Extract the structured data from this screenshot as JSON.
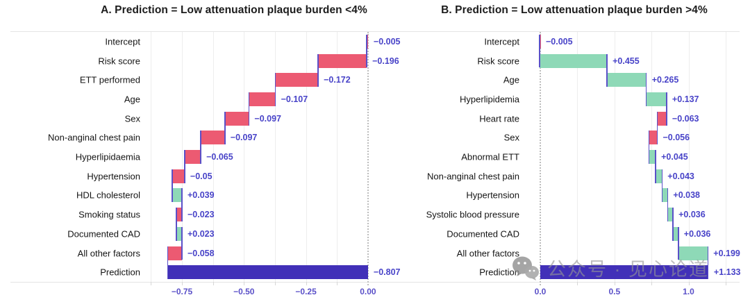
{
  "watermark": {
    "icon": "wechat-icon",
    "text": "公众号 · 见心论道"
  },
  "chart_data": [
    {
      "type": "bar",
      "subtype": "waterfall",
      "title": "A. Prediction = Low attenuation plaque burden <4%",
      "orientation": "horizontal",
      "categories": [
        "Intercept",
        "Risk score",
        "ETT performed",
        "Age",
        "Sex",
        "Non-anginal chest pain",
        "Hyperlipidaemia",
        "Hypertension",
        "HDL cholesterol",
        "Smoking status",
        "Documented CAD",
        "All other factors",
        "Prediction"
      ],
      "values": [
        -0.005,
        -0.196,
        -0.172,
        -0.107,
        -0.097,
        -0.097,
        -0.065,
        -0.05,
        0.039,
        -0.023,
        0.023,
        -0.058,
        -0.807
      ],
      "value_labels": [
        "−0.005",
        "−0.196",
        "−0.172",
        "−0.107",
        "−0.097",
        "−0.097",
        "−0.065",
        "−0.05",
        "+0.039",
        "−0.023",
        "+0.023",
        "−0.058",
        "−0.807"
      ],
      "total_row": "Prediction",
      "xticks": [
        -0.75,
        -0.5,
        -0.25,
        0
      ],
      "xtick_labels": [
        "−0.75",
        "−0.50",
        "−0.25",
        "0.00"
      ],
      "xlim": [
        -0.89,
        0.09
      ],
      "minor_step": 0.125,
      "grid": true,
      "zero_line_dotted": true,
      "colors": {
        "negative": "#ec5a72",
        "positive": "#8ed9b7",
        "total": "#4130b8",
        "connector": "#5a50c8",
        "value_text": "#4843c8",
        "tick_text": "#5a50c8"
      }
    },
    {
      "type": "bar",
      "subtype": "waterfall",
      "title": "B. Prediction = Low attenuation plaque burden >4%",
      "orientation": "horizontal",
      "categories": [
        "Intercept",
        "Risk score",
        "Age",
        "Hyperlipidemia",
        "Heart rate",
        "Sex",
        "Abnormal ETT",
        "Non-anginal chest pain",
        "Hypertension",
        "Systolic blood pressure",
        "Documented CAD",
        "All other factors",
        "Prediction"
      ],
      "values": [
        -0.005,
        0.455,
        0.265,
        0.137,
        -0.063,
        -0.056,
        0.045,
        0.043,
        0.038,
        0.036,
        0.036,
        0.199,
        1.133
      ],
      "value_labels": [
        "−0.005",
        "+0.455",
        "+0.265",
        "+0.137",
        "−0.063",
        "−0.056",
        "+0.045",
        "+0.043",
        "+0.038",
        "+0.036",
        "+0.036",
        "+0.199",
        "+1.133"
      ],
      "total_row": "Prediction",
      "xticks": [
        0,
        0.5,
        1.0
      ],
      "xtick_labels": [
        "0.0",
        "0.5",
        "1.0"
      ],
      "xlim": [
        -0.075,
        1.33
      ],
      "minor_step": 0.25,
      "grid": true,
      "zero_line_dotted": true,
      "colors": {
        "negative": "#ec5a72",
        "positive": "#8ed9b7",
        "total": "#4130b8",
        "connector": "#5a50c8",
        "value_text": "#4843c8",
        "tick_text": "#5a50c8"
      }
    }
  ]
}
